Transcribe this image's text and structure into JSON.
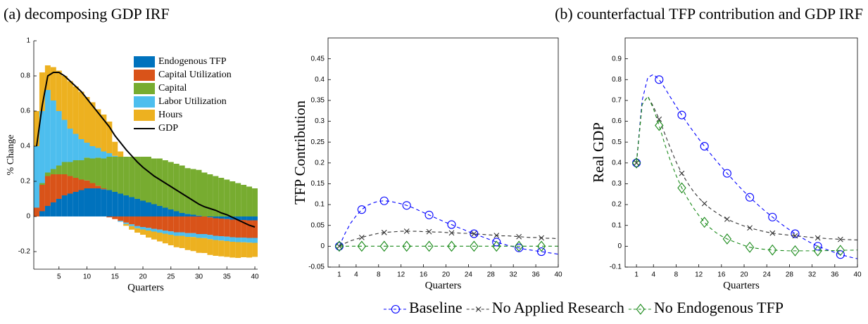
{
  "chart_data": [
    {
      "type": "bar",
      "stacked": true,
      "title": "(a) decomposing GDP IRF",
      "xlabel": "Quarters",
      "ylabel": "% Change",
      "x": [
        1,
        2,
        3,
        4,
        5,
        6,
        7,
        8,
        9,
        10,
        11,
        12,
        13,
        14,
        15,
        16,
        17,
        18,
        19,
        20,
        21,
        22,
        23,
        24,
        25,
        26,
        27,
        28,
        29,
        30,
        31,
        32,
        33,
        34,
        35,
        36,
        37,
        38,
        39,
        40
      ],
      "xlim": [
        0.5,
        40.5
      ],
      "ylim": [
        -0.3,
        1
      ],
      "xticks": [
        5,
        10,
        15,
        20,
        25,
        30,
        35,
        40
      ],
      "yticks": [
        -0.2,
        0,
        0.2,
        0.4,
        0.6,
        0.8,
        1
      ],
      "legend": "upper right",
      "series": [
        {
          "name": "Endogenous TFP",
          "color": "#0072bd",
          "values": [
            0,
            0.03,
            0.06,
            0.08,
            0.1,
            0.12,
            0.13,
            0.14,
            0.15,
            0.16,
            0.16,
            0.16,
            0.155,
            0.15,
            0.14,
            0.13,
            0.12,
            0.11,
            0.1,
            0.09,
            0.08,
            0.07,
            0.06,
            0.05,
            0.04,
            0.03,
            0.02,
            0.015,
            0.01,
            0.005,
            0,
            -0.005,
            -0.01,
            -0.012,
            -0.015,
            -0.018,
            -0.02,
            -0.02,
            -0.022,
            -0.022
          ]
        },
        {
          "name": "Capital Utilization",
          "color": "#d95319",
          "values": [
            0.05,
            0.15,
            0.17,
            0.16,
            0.14,
            0.12,
            0.1,
            0.08,
            0.06,
            0.045,
            0.03,
            0.015,
            0.005,
            -0.005,
            -0.015,
            -0.025,
            -0.035,
            -0.045,
            -0.055,
            -0.06,
            -0.065,
            -0.07,
            -0.075,
            -0.08,
            -0.085,
            -0.09,
            -0.09,
            -0.095,
            -0.095,
            -0.1,
            -0.1,
            -0.1,
            -0.1,
            -0.1,
            -0.1,
            -0.1,
            -0.1,
            -0.1,
            -0.1,
            -0.1
          ]
        },
        {
          "name": "Capital",
          "color": "#77ac30",
          "values": [
            0,
            0.01,
            0.02,
            0.03,
            0.05,
            0.07,
            0.08,
            0.1,
            0.11,
            0.13,
            0.14,
            0.16,
            0.17,
            0.19,
            0.2,
            0.21,
            0.22,
            0.23,
            0.24,
            0.25,
            0.26,
            0.26,
            0.27,
            0.27,
            0.27,
            0.27,
            0.27,
            0.26,
            0.26,
            0.26,
            0.25,
            0.24,
            0.23,
            0.22,
            0.21,
            0.2,
            0.19,
            0.18,
            0.17,
            0.16
          ]
        },
        {
          "name": "Labor Utilization",
          "color": "#4dbeee",
          "values": [
            0.35,
            0.41,
            0.47,
            0.39,
            0.31,
            0.24,
            0.19,
            0.15,
            0.12,
            0.085,
            0.07,
            0.055,
            0.04,
            0.02,
            0.005,
            -0.005,
            -0.008,
            -0.01,
            -0.012,
            -0.014,
            -0.015,
            -0.016,
            -0.017,
            -0.018,
            -0.019,
            -0.02,
            -0.02,
            -0.021,
            -0.022,
            -0.022,
            -0.023,
            -0.024,
            -0.024,
            -0.025,
            -0.025,
            -0.026,
            -0.026,
            -0.027,
            -0.027,
            -0.028
          ]
        },
        {
          "name": "Hours",
          "color": "#edb120",
          "values": [
            0.2,
            0.22,
            0.14,
            0.19,
            0.23,
            0.25,
            0.27,
            0.27,
            0.27,
            0.26,
            0.25,
            0.22,
            0.21,
            0.18,
            0.08,
            0.03,
            -0.01,
            -0.02,
            -0.025,
            -0.03,
            -0.04,
            -0.045,
            -0.05,
            -0.055,
            -0.06,
            -0.065,
            -0.07,
            -0.075,
            -0.08,
            -0.085,
            -0.085,
            -0.09,
            -0.09,
            -0.09,
            -0.09,
            -0.09,
            -0.09,
            -0.085,
            -0.085,
            -0.08
          ]
        },
        {
          "name": "GDP",
          "type": "line",
          "color": "#000000",
          "values": [
            0.4,
            0.63,
            0.8,
            0.82,
            0.82,
            0.8,
            0.77,
            0.74,
            0.71,
            0.67,
            0.63,
            0.59,
            0.55,
            0.51,
            0.46,
            0.42,
            0.38,
            0.345,
            0.31,
            0.28,
            0.255,
            0.23,
            0.21,
            0.19,
            0.17,
            0.15,
            0.13,
            0.11,
            0.09,
            0.07,
            0.055,
            0.045,
            0.035,
            0.02,
            0.01,
            -0.005,
            -0.02,
            -0.035,
            -0.05,
            -0.06
          ]
        }
      ]
    },
    {
      "type": "line",
      "title": "(b) counterfactual TFP contribution and GDP IRF",
      "xlabel": "Quarters",
      "ylabel": "TFP Contribution",
      "x": [
        1,
        2,
        3,
        4,
        5,
        6,
        7,
        8,
        9,
        10,
        11,
        12,
        13,
        14,
        15,
        16,
        17,
        18,
        19,
        20,
        21,
        22,
        23,
        24,
        25,
        26,
        27,
        28,
        29,
        30,
        31,
        32,
        33,
        34,
        35,
        36,
        37,
        38,
        39,
        40
      ],
      "xlim": [
        -1,
        40
      ],
      "ylim": [
        -0.05,
        0.5
      ],
      "xticks": [
        1,
        4,
        8,
        12,
        16,
        20,
        24,
        28,
        32,
        36,
        40
      ],
      "yticks": [
        -0.05,
        0,
        0.05,
        0.1,
        0.15,
        0.2,
        0.25,
        0.3,
        0.35,
        0.4,
        0.45
      ],
      "marker_every": 4,
      "legend": "below",
      "series": [
        {
          "name": "Baseline",
          "color": "#0000ff",
          "marker": "circle",
          "values": [
            0,
            0.03,
            0.055,
            0.073,
            0.088,
            0.098,
            0.104,
            0.108,
            0.109,
            0.108,
            0.105,
            0.102,
            0.098,
            0.093,
            0.087,
            0.081,
            0.075,
            0.069,
            0.063,
            0.057,
            0.052,
            0.046,
            0.041,
            0.035,
            0.03,
            0.025,
            0.02,
            0.015,
            0.01,
            0.006,
            0.002,
            -0.001,
            -0.004,
            -0.007,
            -0.009,
            -0.011,
            -0.013,
            -0.015,
            -0.017,
            -0.019
          ]
        },
        {
          "name": "No Applied Research",
          "color": "#333333",
          "marker": "x",
          "values": [
            0,
            0.007,
            0.013,
            0.017,
            0.021,
            0.025,
            0.028,
            0.031,
            0.033,
            0.034,
            0.035,
            0.036,
            0.036,
            0.036,
            0.036,
            0.035,
            0.035,
            0.034,
            0.034,
            0.033,
            0.032,
            0.032,
            0.031,
            0.031,
            0.03,
            0.029,
            0.028,
            0.027,
            0.026,
            0.025,
            0.025,
            0.024,
            0.023,
            0.022,
            0.021,
            0.021,
            0.02,
            0.019,
            0.019,
            0.018
          ]
        },
        {
          "name": "No Endogenous TFP",
          "color": "#1a8a1a",
          "marker": "diamond",
          "values": [
            0,
            0,
            0,
            0,
            0,
            0,
            0,
            0,
            0,
            0,
            0,
            0,
            0,
            0,
            0,
            0,
            0,
            0,
            0,
            0,
            0,
            0,
            0,
            0,
            0,
            0,
            0,
            0,
            0,
            0,
            0,
            0,
            0,
            0,
            0,
            0,
            0,
            0,
            0,
            0
          ]
        }
      ]
    },
    {
      "type": "line",
      "xlabel": "Quarters",
      "ylabel": "Real GDP",
      "x": [
        1,
        2,
        3,
        4,
        5,
        6,
        7,
        8,
        9,
        10,
        11,
        12,
        13,
        14,
        15,
        16,
        17,
        18,
        19,
        20,
        21,
        22,
        23,
        24,
        25,
        26,
        27,
        28,
        29,
        30,
        31,
        32,
        33,
        34,
        35,
        36,
        37,
        38,
        39,
        40
      ],
      "xlim": [
        -1,
        40
      ],
      "ylim": [
        -0.1,
        1
      ],
      "xticks": [
        1,
        4,
        8,
        12,
        16,
        20,
        24,
        28,
        32,
        36,
        40
      ],
      "yticks": [
        -0.1,
        0,
        0.1,
        0.2,
        0.3,
        0.4,
        0.5,
        0.6,
        0.7,
        0.8,
        0.9
      ],
      "marker_every": 4,
      "series": [
        {
          "color": "#0000ff",
          "marker": "circle",
          "values": [
            0.4,
            0.7,
            0.81,
            0.825,
            0.8,
            0.76,
            0.715,
            0.672,
            0.63,
            0.59,
            0.552,
            0.515,
            0.48,
            0.446,
            0.413,
            0.381,
            0.35,
            0.32,
            0.29,
            0.262,
            0.235,
            0.21,
            0.185,
            0.162,
            0.14,
            0.119,
            0.098,
            0.079,
            0.06,
            0.044,
            0.028,
            0.013,
            0,
            -0.01,
            -0.02,
            -0.03,
            -0.04,
            -0.047,
            -0.054,
            -0.06
          ]
        },
        {
          "color": "#333333",
          "marker": "x",
          "values": [
            0.4,
            0.68,
            0.72,
            0.67,
            0.61,
            0.54,
            0.47,
            0.405,
            0.35,
            0.305,
            0.265,
            0.232,
            0.205,
            0.182,
            0.163,
            0.145,
            0.13,
            0.118,
            0.107,
            0.097,
            0.088,
            0.081,
            0.074,
            0.068,
            0.063,
            0.059,
            0.056,
            0.053,
            0.05,
            0.048,
            0.045,
            0.042,
            0.04,
            0.038,
            0.036,
            0.035,
            0.033,
            0.032,
            0.031,
            0.03
          ]
        },
        {
          "color": "#1a8a1a",
          "marker": "diamond",
          "values": [
            0.4,
            0.68,
            0.72,
            0.66,
            0.58,
            0.49,
            0.41,
            0.34,
            0.28,
            0.23,
            0.186,
            0.148,
            0.115,
            0.088,
            0.066,
            0.049,
            0.035,
            0.024,
            0.014,
            0.004,
            -0.005,
            -0.009,
            -0.013,
            -0.016,
            -0.018,
            -0.02,
            -0.021,
            -0.022,
            -0.022,
            -0.022,
            -0.022,
            -0.022,
            -0.022,
            -0.021,
            -0.021,
            -0.021,
            -0.02,
            -0.019,
            -0.019,
            -0.018
          ]
        }
      ]
    }
  ]
}
